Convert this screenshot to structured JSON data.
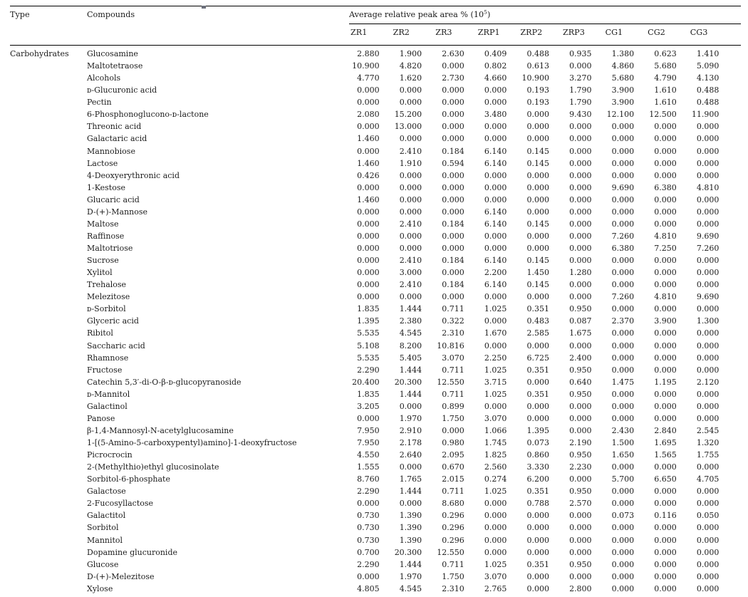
{
  "colors": {
    "background": "#ffffff",
    "text": "#1c1c1c",
    "rule": "#000000"
  },
  "header": {
    "type": "Type",
    "compounds": "Compounds",
    "span": {
      "prefix": "Average relative peak area % (10",
      "sup": "5",
      "suffix": ")"
    },
    "samples": [
      "ZR1",
      "ZR2",
      "ZR3",
      "ZRP1",
      "ZRP2",
      "ZRP3",
      "CG1",
      "CG2",
      "CG3"
    ]
  },
  "body": {
    "type_label": "Carbohydrates",
    "rows": [
      {
        "compound": "Glucosamine",
        "values": [
          "2.880",
          "1.900",
          "2.630",
          "0.409",
          "0.488",
          "0.935",
          "1.380",
          "0.623",
          "1.410"
        ]
      },
      {
        "compound": "Maltotetraose",
        "values": [
          "10.900",
          "4.820",
          "0.000",
          "0.802",
          "0.613",
          "0.000",
          "4.860",
          "5.680",
          "5.090"
        ]
      },
      {
        "compound": "Alcohols",
        "values": [
          "4.770",
          "1.620",
          "2.730",
          "4.660",
          "10.900",
          "3.270",
          "5.680",
          "4.790",
          "4.130"
        ]
      },
      {
        "compound": "ᴅ-Glucuronic acid",
        "values": [
          "0.000",
          "0.000",
          "0.000",
          "0.000",
          "0.193",
          "1.790",
          "3.900",
          "1.610",
          "0.488"
        ]
      },
      {
        "compound": "Pectin",
        "values": [
          "0.000",
          "0.000",
          "0.000",
          "0.000",
          "0.193",
          "1.790",
          "3.900",
          "1.610",
          "0.488"
        ]
      },
      {
        "compound": "6-Phosphonoglucono-ᴅ-lactone",
        "values": [
          "2.080",
          "15.200",
          "0.000",
          "3.480",
          "0.000",
          "9.430",
          "12.100",
          "12.500",
          "11.900"
        ]
      },
      {
        "compound": "Threonic acid",
        "values": [
          "0.000",
          "13.000",
          "0.000",
          "0.000",
          "0.000",
          "0.000",
          "0.000",
          "0.000",
          "0.000"
        ]
      },
      {
        "compound": "Galactaric acid",
        "values": [
          "1.460",
          "0.000",
          "0.000",
          "0.000",
          "0.000",
          "0.000",
          "0.000",
          "0.000",
          "0.000"
        ]
      },
      {
        "compound": "Mannobiose",
        "values": [
          "0.000",
          "2.410",
          "0.184",
          "6.140",
          "0.145",
          "0.000",
          "0.000",
          "0.000",
          "0.000"
        ]
      },
      {
        "compound": "Lactose",
        "values": [
          "1.460",
          "1.910",
          "0.594",
          "6.140",
          "0.145",
          "0.000",
          "0.000",
          "0.000",
          "0.000"
        ]
      },
      {
        "compound": "4-Deoxyerythronic acid",
        "values": [
          "0.426",
          "0.000",
          "0.000",
          "0.000",
          "0.000",
          "0.000",
          "0.000",
          "0.000",
          "0.000"
        ]
      },
      {
        "compound": "1-Kestose",
        "values": [
          "0.000",
          "0.000",
          "0.000",
          "0.000",
          "0.000",
          "0.000",
          "9.690",
          "6.380",
          "4.810"
        ]
      },
      {
        "compound": "Glucaric acid",
        "values": [
          "1.460",
          "0.000",
          "0.000",
          "0.000",
          "0.000",
          "0.000",
          "0.000",
          "0.000",
          "0.000"
        ]
      },
      {
        "compound": "D-(+)-Mannose",
        "values": [
          "0.000",
          "0.000",
          "0.000",
          "6.140",
          "0.000",
          "0.000",
          "0.000",
          "0.000",
          "0.000"
        ]
      },
      {
        "compound": "Maltose",
        "values": [
          "0.000",
          "2.410",
          "0.184",
          "6.140",
          "0.145",
          "0.000",
          "0.000",
          "0.000",
          "0.000"
        ]
      },
      {
        "compound": "Raffinose",
        "values": [
          "0.000",
          "0.000",
          "0.000",
          "0.000",
          "0.000",
          "0.000",
          "7.260",
          "4.810",
          "9.690"
        ]
      },
      {
        "compound": "Maltotriose",
        "values": [
          "0.000",
          "0.000",
          "0.000",
          "0.000",
          "0.000",
          "0.000",
          "6.380",
          "7.250",
          "7.260"
        ]
      },
      {
        "compound": "Sucrose",
        "values": [
          "0.000",
          "2.410",
          "0.184",
          "6.140",
          "0.145",
          "0.000",
          "0.000",
          "0.000",
          "0.000"
        ]
      },
      {
        "compound": "Xylitol",
        "values": [
          "0.000",
          "3.000",
          "0.000",
          "2.200",
          "1.450",
          "1.280",
          "0.000",
          "0.000",
          "0.000"
        ]
      },
      {
        "compound": "Trehalose",
        "values": [
          "0.000",
          "2.410",
          "0.184",
          "6.140",
          "0.145",
          "0.000",
          "0.000",
          "0.000",
          "0.000"
        ]
      },
      {
        "compound": "Melezitose",
        "values": [
          "0.000",
          "0.000",
          "0.000",
          "0.000",
          "0.000",
          "0.000",
          "7.260",
          "4.810",
          "9.690"
        ]
      },
      {
        "compound": "ᴅ-Sorbitol",
        "values": [
          "1.835",
          "1.444",
          "0.711",
          "1.025",
          "0.351",
          "0.950",
          "0.000",
          "0.000",
          "0.000"
        ]
      },
      {
        "compound": "Glyceric acid",
        "values": [
          "1.395",
          "2.380",
          "0.322",
          "0.000",
          "0.483",
          "0.087",
          "2.370",
          "3.900",
          "1.300"
        ]
      },
      {
        "compound": "Ribitol",
        "values": [
          "5.535",
          "4.545",
          "2.310",
          "1.670",
          "2.585",
          "1.675",
          "0.000",
          "0.000",
          "0.000"
        ]
      },
      {
        "compound": "Saccharic acid",
        "values": [
          "5.108",
          "8.200",
          "10.816",
          "0.000",
          "0.000",
          "0.000",
          "0.000",
          "0.000",
          "0.000"
        ]
      },
      {
        "compound": "Rhamnose",
        "values": [
          "5.535",
          "5.405",
          "3.070",
          "2.250",
          "6.725",
          "2.400",
          "0.000",
          "0.000",
          "0.000"
        ]
      },
      {
        "compound": "Fructose",
        "values": [
          "2.290",
          "1.444",
          "0.711",
          "1.025",
          "0.351",
          "0.950",
          "0.000",
          "0.000",
          "0.000"
        ]
      },
      {
        "compound": "Catechin 5,3′-di-O-β-ᴅ-glucopyranoside",
        "values": [
          "20.400",
          "20.300",
          "12.550",
          "3.715",
          "0.000",
          "0.640",
          "1.475",
          "1.195",
          "2.120"
        ]
      },
      {
        "compound": "ᴅ-Mannitol",
        "values": [
          "1.835",
          "1.444",
          "0.711",
          "1.025",
          "0.351",
          "0.950",
          "0.000",
          "0.000",
          "0.000"
        ]
      },
      {
        "compound": "Galactinol",
        "values": [
          "3.205",
          "0.000",
          "0.899",
          "0.000",
          "0.000",
          "0.000",
          "0.000",
          "0.000",
          "0.000"
        ]
      },
      {
        "compound": "Panose",
        "values": [
          "0.000",
          "1.970",
          "1.750",
          "3.070",
          "0.000",
          "0.000",
          "0.000",
          "0.000",
          "0.000"
        ]
      },
      {
        "compound": "β-1,4-Mannosyl-N-acetylglucosamine",
        "values": [
          "7.950",
          "2.910",
          "0.000",
          "1.066",
          "1.395",
          "0.000",
          "2.430",
          "2.840",
          "2.545"
        ]
      },
      {
        "compound": "1-[(5-Amino-5-carboxypentyl)amino]-1-deoxyfructose",
        "values": [
          "7.950",
          "2.178",
          "0.980",
          "1.745",
          "0.073",
          "2.190",
          "1.500",
          "1.695",
          "1.320"
        ]
      },
      {
        "compound": "Picrocrocin",
        "values": [
          "4.550",
          "2.640",
          "2.095",
          "1.825",
          "0.860",
          "0.950",
          "1.650",
          "1.565",
          "1.755"
        ]
      },
      {
        "compound": "2-(Methylthio)ethyl glucosinolate",
        "values": [
          "1.555",
          "0.000",
          "0.670",
          "2.560",
          "3.330",
          "2.230",
          "0.000",
          "0.000",
          "0.000"
        ]
      },
      {
        "compound": "Sorbitol-6-phosphate",
        "values": [
          "8.760",
          "1.765",
          "2.015",
          "0.274",
          "6.200",
          "0.000",
          "5.700",
          "6.650",
          "4.705"
        ]
      },
      {
        "compound": "Galactose",
        "values": [
          "2.290",
          "1.444",
          "0.711",
          "1.025",
          "0.351",
          "0.950",
          "0.000",
          "0.000",
          "0.000"
        ]
      },
      {
        "compound": "2-Fucosyllactose",
        "values": [
          "0.000",
          "0.000",
          "8.680",
          "0.000",
          "0.788",
          "2.570",
          "0.000",
          "0.000",
          "0.000"
        ]
      },
      {
        "compound": "Galactitol",
        "values": [
          "0.730",
          "1.390",
          "0.296",
          "0.000",
          "0.000",
          "0.000",
          "0.073",
          "0.116",
          "0.050"
        ]
      },
      {
        "compound": "Sorbitol",
        "values": [
          "0.730",
          "1.390",
          "0.296",
          "0.000",
          "0.000",
          "0.000",
          "0.000",
          "0.000",
          "0.000"
        ]
      },
      {
        "compound": "Mannitol",
        "values": [
          "0.730",
          "1.390",
          "0.296",
          "0.000",
          "0.000",
          "0.000",
          "0.000",
          "0.000",
          "0.000"
        ]
      },
      {
        "compound": "Dopamine glucuronide",
        "values": [
          "0.700",
          "20.300",
          "12.550",
          "0.000",
          "0.000",
          "0.000",
          "0.000",
          "0.000",
          "0.000"
        ]
      },
      {
        "compound": "Glucose",
        "values": [
          "2.290",
          "1.444",
          "0.711",
          "1.025",
          "0.351",
          "0.950",
          "0.000",
          "0.000",
          "0.000"
        ]
      },
      {
        "compound": "D-(+)-Melezitose",
        "values": [
          "0.000",
          "1.970",
          "1.750",
          "3.070",
          "0.000",
          "0.000",
          "0.000",
          "0.000",
          "0.000"
        ]
      },
      {
        "compound": "Xylose",
        "values": [
          "4.805",
          "4.545",
          "2.310",
          "2.765",
          "0.000",
          "2.800",
          "0.000",
          "0.000",
          "0.000"
        ]
      }
    ]
  }
}
